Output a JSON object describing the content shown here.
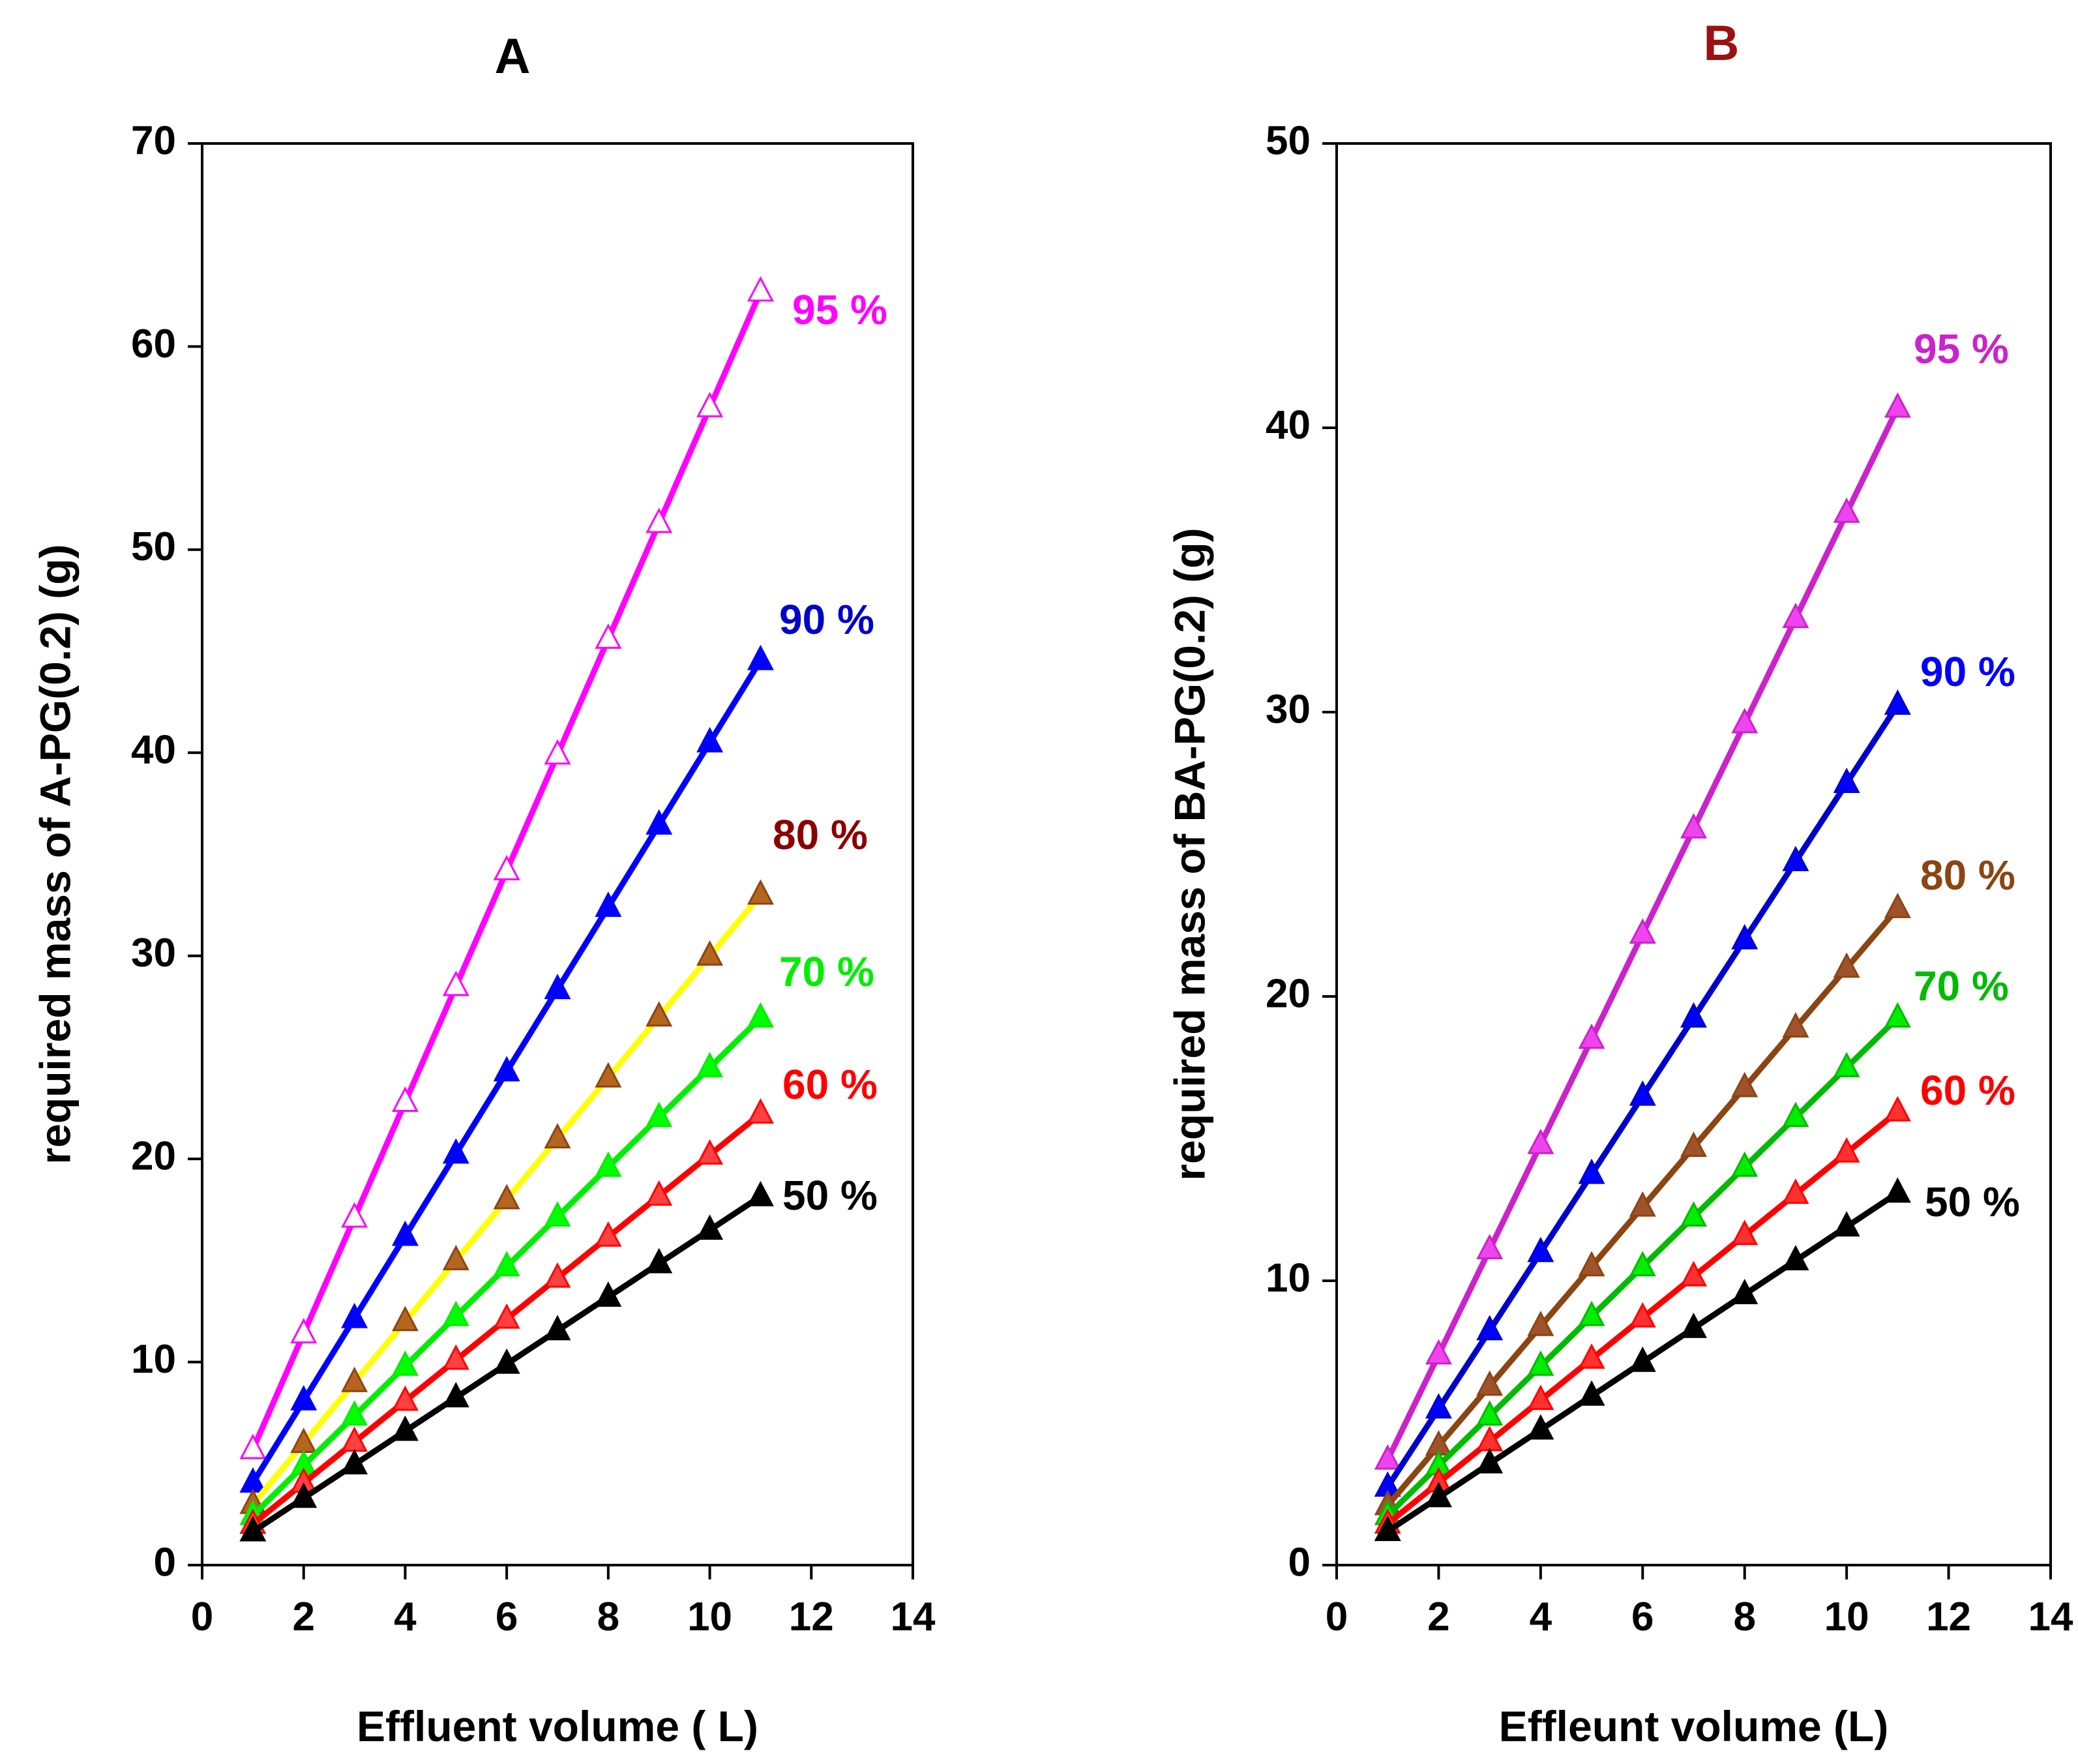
{
  "chart_data": [
    {
      "type": "line",
      "title": "A",
      "title_color": "#000000",
      "xlabel": "Effluent volume ( L)",
      "ylabel": "required mass of  A-PG(0.2) (g)",
      "xlim": [
        0,
        14
      ],
      "ylim": [
        0,
        70
      ],
      "xticks": [
        0,
        2,
        4,
        6,
        8,
        10,
        12,
        14
      ],
      "yticks": [
        0,
        10,
        20,
        30,
        40,
        50,
        60,
        70
      ],
      "x": [
        1,
        2,
        3,
        4,
        5,
        6,
        7,
        8,
        9,
        10,
        11
      ],
      "grid": false,
      "series": [
        {
          "name": "95 %",
          "color": "#ff00ff",
          "marker_fill": "#ffffff",
          "label_color": "#ff00ff",
          "values": [
            5.7,
            11.4,
            17.1,
            22.8,
            28.5,
            34.2,
            39.9,
            45.6,
            51.3,
            57.0,
            62.7
          ]
        },
        {
          "name": "90 %",
          "color": "#0000ff",
          "marker_fill": "#0000ff",
          "label_color": "#0000cc",
          "values": [
            4.05,
            8.1,
            12.15,
            16.2,
            20.25,
            24.3,
            28.35,
            32.4,
            36.45,
            40.5,
            44.55
          ]
        },
        {
          "name": "80 %",
          "color": "#ffff00",
          "marker_fill": "#b5651d",
          "label_color": "#8b0000",
          "values": [
            3.0,
            6.0,
            9.0,
            12.0,
            15.0,
            18.0,
            21.0,
            24.0,
            27.0,
            30.0,
            33.0
          ]
        },
        {
          "name": "70 %",
          "color": "#00ee00",
          "marker_fill": "#00ff00",
          "label_color": "#00ee00",
          "values": [
            2.45,
            4.9,
            7.35,
            9.8,
            12.25,
            14.7,
            17.15,
            19.6,
            22.05,
            24.5,
            26.95
          ]
        },
        {
          "name": "60 %",
          "color": "#ff0000",
          "marker_fill": "#ff4040",
          "label_color": "#ff0000",
          "values": [
            2.02,
            4.04,
            6.06,
            8.08,
            10.1,
            12.12,
            14.14,
            16.16,
            18.18,
            20.2,
            22.22
          ]
        },
        {
          "name": "50 %",
          "color": "#000000",
          "marker_fill": "#000000",
          "label_color": "#000000",
          "values": [
            1.65,
            3.3,
            4.95,
            6.6,
            8.25,
            9.9,
            11.55,
            13.2,
            14.85,
            16.5,
            18.15
          ]
        }
      ]
    },
    {
      "type": "line",
      "title": "B",
      "title_color": "#9b1111",
      "xlabel": "Effleunt volume (L)",
      "ylabel": "required mass of BA-PG(0.2) (g)",
      "xlim": [
        0,
        14
      ],
      "ylim": [
        0,
        50
      ],
      "xticks": [
        0,
        2,
        4,
        6,
        8,
        10,
        12,
        14
      ],
      "yticks": [
        0,
        10,
        20,
        30,
        40,
        50
      ],
      "x": [
        1,
        2,
        3,
        4,
        5,
        6,
        7,
        8,
        9,
        10,
        11
      ],
      "grid": false,
      "series": [
        {
          "name": "95 %",
          "color": "#cc22cc",
          "marker_fill": "#ee44ee",
          "label_color": "#cc22cc",
          "values": [
            3.7,
            7.4,
            11.1,
            14.8,
            18.5,
            22.2,
            25.9,
            29.6,
            33.3,
            37.0,
            40.7
          ]
        },
        {
          "name": "90 %",
          "color": "#0000cc",
          "marker_fill": "#0000ff",
          "label_color": "#0000ff",
          "values": [
            2.75,
            5.5,
            8.25,
            11.0,
            13.75,
            16.5,
            19.25,
            22.0,
            24.75,
            27.5,
            30.25
          ]
        },
        {
          "name": "80 %",
          "color": "#8b4513",
          "marker_fill": "#a0522d",
          "label_color": "#8b4513",
          "values": [
            2.1,
            4.2,
            6.3,
            8.4,
            10.5,
            12.6,
            14.7,
            16.8,
            18.9,
            21.0,
            23.1
          ]
        },
        {
          "name": "70 %",
          "color": "#00bb00",
          "marker_fill": "#00ee00",
          "label_color": "#00bb00",
          "values": [
            1.75,
            3.5,
            5.25,
            7.0,
            8.75,
            10.5,
            12.25,
            14.0,
            15.75,
            17.5,
            19.25
          ]
        },
        {
          "name": "60 %",
          "color": "#ff0000",
          "marker_fill": "#ff3030",
          "label_color": "#ff0000",
          "values": [
            1.45,
            2.9,
            4.35,
            5.8,
            7.25,
            8.7,
            10.15,
            11.6,
            13.05,
            14.5,
            15.95
          ]
        },
        {
          "name": "50 %",
          "color": "#000000",
          "marker_fill": "#000000",
          "label_color": "#000000",
          "values": [
            1.19,
            2.38,
            3.57,
            4.76,
            5.95,
            7.14,
            8.33,
            9.52,
            10.71,
            11.9,
            13.09
          ]
        }
      ]
    }
  ]
}
